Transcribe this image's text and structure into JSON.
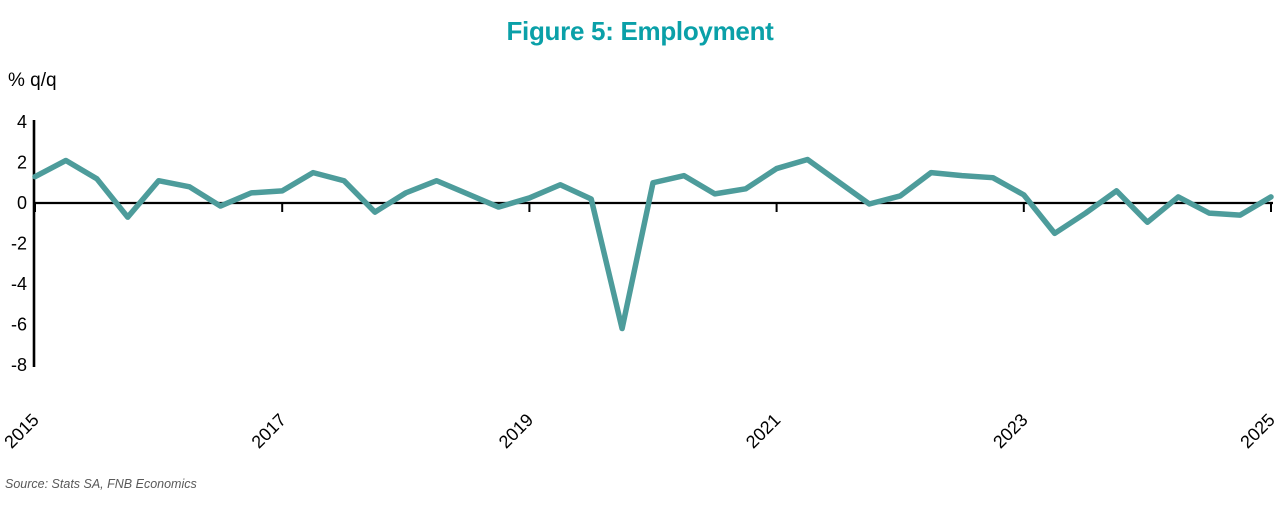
{
  "figure": {
    "source": "Source: Stats SA, FNB Economics",
    "colors": {
      "title": "#0AA0A8",
      "line": "#4D9C9B",
      "axis": "#000000",
      "source_text": "#595959"
    }
  },
  "chart_data": {
    "type": "line",
    "title": "Figure 5: Employment",
    "ylabel": "% q/q",
    "xlabel": "",
    "grid": false,
    "legend_position": "none",
    "ylim": [
      -8,
      4
    ],
    "yticks": [
      4,
      2,
      0,
      -2,
      -4,
      -6,
      -8
    ],
    "xtick_labels": [
      "2015",
      "2017",
      "2019",
      "2021",
      "2023",
      "2025"
    ],
    "xtick_indices": [
      0,
      8,
      16,
      24,
      32,
      40
    ],
    "x": [
      "2015Q1",
      "2015Q2",
      "2015Q3",
      "2015Q4",
      "2016Q1",
      "2016Q2",
      "2016Q3",
      "2016Q4",
      "2017Q1",
      "2017Q2",
      "2017Q3",
      "2017Q4",
      "2018Q1",
      "2018Q2",
      "2018Q3",
      "2018Q4",
      "2019Q1",
      "2019Q2",
      "2019Q3",
      "2019Q4",
      "2020Q1",
      "2020Q2",
      "2020Q3",
      "2020Q4",
      "2021Q1",
      "2021Q2",
      "2021Q3",
      "2021Q4",
      "2022Q1",
      "2022Q2",
      "2022Q3",
      "2022Q4",
      "2023Q1",
      "2023Q2",
      "2023Q3",
      "2023Q4",
      "2024Q1",
      "2024Q2",
      "2024Q3",
      "2024Q4",
      "2025Q1"
    ],
    "series": [
      {
        "name": "Employment, % q/q",
        "values": [
          1.3,
          2.1,
          1.2,
          -0.7,
          1.1,
          0.8,
          -0.15,
          0.5,
          0.6,
          1.5,
          1.1,
          -0.45,
          0.5,
          1.1,
          0.45,
          -0.2,
          0.25,
          0.9,
          0.2,
          -6.2,
          1.0,
          1.35,
          0.45,
          0.7,
          1.7,
          2.15,
          1.05,
          -0.05,
          0.35,
          1.5,
          1.35,
          1.25,
          0.4,
          -1.5,
          -0.5,
          0.6,
          -0.95,
          0.3,
          -0.5,
          -0.6,
          0.3
        ]
      }
    ]
  }
}
